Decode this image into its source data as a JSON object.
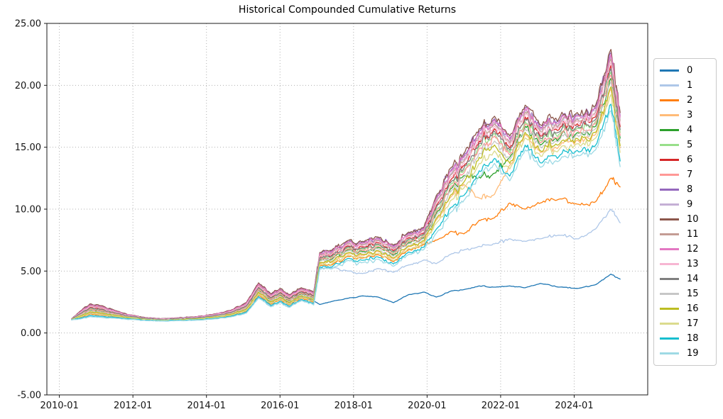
{
  "chart_data": {
    "type": "line",
    "title": "Historical Compounded Cumulative Returns",
    "xlabel": "",
    "ylabel": "",
    "ylim": [
      -5,
      25
    ],
    "y_ticks": [
      "25.00",
      "20.00",
      "15.00",
      "10.00",
      "5.00",
      "0.00",
      "-5.00"
    ],
    "x_ticks": [
      "2010-01",
      "2012-01",
      "2014-01",
      "2016-01",
      "2018-01",
      "2020-01",
      "2022-01",
      "2024-01"
    ],
    "grid": true,
    "grid_style": "dotted",
    "legend_position": "right-outside",
    "x": [
      "2010-05",
      "2010-08",
      "2010-11",
      "2011-03",
      "2011-08",
      "2012-01",
      "2012-06",
      "2012-10",
      "2013-03",
      "2013-09",
      "2014-03",
      "2014-09",
      "2015-02",
      "2015-06",
      "2015-10",
      "2016-01",
      "2016-04",
      "2016-08",
      "2016-12",
      "2017-02",
      "2017-06",
      "2017-11",
      "2018-04",
      "2018-09",
      "2019-02",
      "2019-07",
      "2019-12",
      "2020-04",
      "2020-09",
      "2021-01",
      "2021-06",
      "2021-11",
      "2022-04",
      "2022-09",
      "2023-02",
      "2023-08",
      "2024-02",
      "2024-08",
      "2025-01",
      "2025-04"
    ],
    "series": [
      {
        "name": "0",
        "color": "#1f77b4",
        "values": [
          1.09,
          1.35,
          1.64,
          1.55,
          1.36,
          1.2,
          1.06,
          1.02,
          1.06,
          1.11,
          1.24,
          1.47,
          1.87,
          3.21,
          2.44,
          2.82,
          2.39,
          2.94,
          2.59,
          2.3,
          2.55,
          2.8,
          3.0,
          2.9,
          2.45,
          3.1,
          3.3,
          2.9,
          3.4,
          3.5,
          3.8,
          3.7,
          3.8,
          3.65,
          4.0,
          3.7,
          3.6,
          3.9,
          4.75,
          4.35
        ]
      },
      {
        "name": "1",
        "color": "#aec7e8",
        "values": [
          1.06,
          1.17,
          1.36,
          1.3,
          1.21,
          1.11,
          1.0,
          0.97,
          1.0,
          1.03,
          1.14,
          1.33,
          1.64,
          2.88,
          2.16,
          2.52,
          2.11,
          2.66,
          2.31,
          5.24,
          5.26,
          5.0,
          4.8,
          5.2,
          4.9,
          5.5,
          5.9,
          5.6,
          6.4,
          6.7,
          7.0,
          7.2,
          7.6,
          7.4,
          7.6,
          7.9,
          7.6,
          8.4,
          10.0,
          8.9
        ]
      },
      {
        "name": "2",
        "color": "#ff7f0e",
        "values": [
          1.08,
          1.28,
          1.53,
          1.45,
          1.3,
          1.16,
          1.04,
          1.0,
          1.04,
          1.08,
          1.2,
          1.41,
          1.78,
          3.08,
          2.33,
          2.7,
          2.28,
          2.83,
          2.48,
          5.45,
          5.5,
          6.18,
          6.05,
          6.33,
          5.75,
          6.73,
          7.13,
          7.5,
          8.2,
          8.0,
          9.1,
          9.3,
          10.5,
          10.0,
          10.5,
          10.8,
          10.4,
          10.6,
          12.5,
          11.8
        ]
      },
      {
        "name": "3",
        "color": "#ffbb78",
        "values": [
          1.09,
          1.37,
          1.67,
          1.58,
          1.38,
          1.21,
          1.07,
          1.03,
          1.07,
          1.11,
          1.25,
          1.48,
          1.89,
          3.24,
          2.47,
          2.86,
          2.42,
          2.97,
          2.62,
          5.63,
          5.71,
          6.4,
          6.28,
          6.57,
          5.98,
          6.97,
          7.37,
          9.12,
          11.04,
          12.02,
          10.9,
          11.2,
          13.54,
          16.04,
          14.57,
          15.07,
          15.57,
          16.04,
          19.68,
          14.95
        ]
      },
      {
        "name": "4",
        "color": "#2ca02c",
        "values": [
          1.11,
          1.49,
          1.86,
          1.75,
          1.48,
          1.27,
          1.11,
          1.06,
          1.11,
          1.17,
          1.32,
          1.58,
          2.05,
          3.47,
          2.66,
          3.06,
          2.61,
          3.16,
          2.81,
          5.87,
          5.98,
          6.69,
          6.59,
          6.9,
          6.29,
          7.3,
          7.7,
          9.66,
          11.69,
          12.7,
          12.6,
          12.9,
          14.19,
          16.69,
          15.18,
          15.68,
          16.18,
          16.69,
          20.56,
          15.73
        ]
      },
      {
        "name": "5",
        "color": "#98df8a",
        "values": [
          1.12,
          1.56,
          1.97,
          1.85,
          1.54,
          1.3,
          1.14,
          1.08,
          1.14,
          1.2,
          1.36,
          1.63,
          2.14,
          3.6,
          2.77,
          3.18,
          2.72,
          3.27,
          2.92,
          6.01,
          6.14,
          6.86,
          6.77,
          7.09,
          6.47,
          7.49,
          7.89,
          9.98,
          12.07,
          13.1,
          15.1,
          16.1,
          14.57,
          17.07,
          15.54,
          16.04,
          16.54,
          17.07,
          21.08,
          16.19
        ]
      },
      {
        "name": "6",
        "color": "#d62728",
        "values": [
          1.13,
          1.63,
          2.08,
          1.95,
          1.6,
          1.34,
          1.16,
          1.1,
          1.16,
          1.23,
          1.4,
          1.69,
          2.23,
          3.73,
          2.88,
          3.3,
          2.83,
          3.38,
          3.03,
          6.15,
          6.3,
          7.03,
          6.95,
          7.28,
          6.65,
          7.68,
          8.08,
          10.3,
          12.45,
          13.5,
          15.5,
          16.5,
          14.95,
          17.45,
          15.9,
          16.4,
          16.9,
          17.45,
          21.6,
          16.65
        ]
      },
      {
        "name": "7",
        "color": "#ff9896",
        "values": [
          1.11,
          1.52,
          1.91,
          1.8,
          1.51,
          1.29,
          1.12,
          1.07,
          1.12,
          1.18,
          1.34,
          1.61,
          2.09,
          3.53,
          2.71,
          3.12,
          2.66,
          3.21,
          2.86,
          5.94,
          6.06,
          6.77,
          6.68,
          6.99,
          6.38,
          7.39,
          7.79,
          9.82,
          11.88,
          12.9,
          14.9,
          15.9,
          14.38,
          16.88,
          15.36,
          15.86,
          16.36,
          16.88,
          20.82,
          15.96
        ]
      },
      {
        "name": "8",
        "color": "#9467bd",
        "values": [
          1.15,
          1.77,
          2.3,
          2.15,
          1.72,
          1.41,
          1.21,
          1.14,
          1.21,
          1.29,
          1.48,
          1.8,
          2.41,
          3.99,
          3.1,
          3.54,
          3.05,
          3.6,
          3.25,
          6.43,
          6.62,
          7.37,
          7.31,
          7.66,
          7.01,
          8.06,
          8.46,
          10.94,
          13.21,
          14.3,
          16.3,
          17.3,
          15.71,
          18.21,
          16.62,
          17.12,
          17.62,
          18.21,
          22.64,
          17.57
        ]
      },
      {
        "name": "9",
        "color": "#c5b0d5",
        "values": [
          1.14,
          1.72,
          2.22,
          2.08,
          1.68,
          1.39,
          1.19,
          1.13,
          1.19,
          1.26,
          1.45,
          1.76,
          2.34,
          3.89,
          3.02,
          3.46,
          2.97,
          3.52,
          3.17,
          6.33,
          6.51,
          7.25,
          7.18,
          7.52,
          6.88,
          7.92,
          8.32,
          10.72,
          12.94,
          14.02,
          16.02,
          17.02,
          15.44,
          17.94,
          16.37,
          16.87,
          17.37,
          17.94,
          22.28,
          17.25
        ]
      },
      {
        "name": "10",
        "color": "#8c564b",
        "values": [
          1.15,
          1.8,
          2.35,
          2.2,
          1.75,
          1.43,
          1.22,
          1.15,
          1.22,
          1.3,
          1.5,
          1.83,
          2.45,
          4.05,
          3.15,
          3.6,
          3.1,
          3.65,
          3.3,
          6.5,
          6.7,
          7.45,
          7.4,
          7.75,
          7.1,
          8.15,
          8.55,
          11.1,
          13.4,
          14.5,
          16.5,
          17.5,
          15.9,
          18.4,
          16.8,
          17.3,
          17.8,
          18.4,
          22.9,
          17.8
        ]
      },
      {
        "name": "11",
        "color": "#c49c94",
        "values": [
          1.14,
          1.7,
          2.19,
          2.05,
          1.66,
          1.38,
          1.18,
          1.12,
          1.18,
          1.26,
          1.44,
          1.75,
          2.32,
          3.86,
          2.99,
          3.42,
          2.94,
          3.49,
          3.14,
          6.29,
          6.46,
          7.2,
          7.13,
          7.47,
          6.83,
          7.87,
          8.27,
          10.62,
          12.83,
          13.9,
          15.9,
          16.9,
          15.33,
          17.83,
          16.26,
          16.76,
          17.26,
          17.83,
          22.12,
          17.11
        ]
      },
      {
        "name": "12",
        "color": "#e377c2",
        "values": [
          1.14,
          1.74,
          2.26,
          2.12,
          1.7,
          1.4,
          1.2,
          1.13,
          1.2,
          1.28,
          1.47,
          1.79,
          2.38,
          3.95,
          3.06,
          3.5,
          3.01,
          3.56,
          3.21,
          6.39,
          6.57,
          7.31,
          7.26,
          7.6,
          6.96,
          8.0,
          8.4,
          10.84,
          13.1,
          14.18,
          16.18,
          17.18,
          15.6,
          18.1,
          16.51,
          17.01,
          17.51,
          18.1,
          22.48,
          17.43
        ]
      },
      {
        "name": "13",
        "color": "#f7b6d2",
        "values": [
          1.13,
          1.66,
          2.13,
          2.0,
          1.63,
          1.36,
          1.17,
          1.11,
          1.17,
          1.24,
          1.42,
          1.72,
          2.27,
          3.79,
          2.93,
          3.36,
          2.88,
          3.43,
          3.08,
          6.22,
          6.38,
          7.11,
          7.04,
          7.37,
          6.74,
          7.77,
          8.17,
          10.46,
          12.64,
          13.7,
          15.7,
          16.7,
          15.14,
          17.64,
          16.08,
          16.58,
          17.08,
          17.64,
          21.86,
          16.88
        ]
      },
      {
        "name": "14",
        "color": "#7f7f7f",
        "values": [
          1.12,
          1.59,
          2.02,
          1.9,
          1.57,
          1.32,
          1.15,
          1.09,
          1.15,
          1.21,
          1.38,
          1.66,
          2.18,
          3.66,
          2.82,
          3.24,
          2.77,
          3.32,
          2.97,
          6.08,
          6.22,
          6.94,
          6.86,
          7.18,
          6.56,
          7.58,
          7.98,
          10.14,
          12.26,
          13.3,
          15.3,
          16.3,
          14.76,
          17.26,
          15.72,
          16.22,
          16.72,
          17.26,
          21.34,
          16.42
        ]
      },
      {
        "name": "15",
        "color": "#c7c7c7",
        "values": [
          1.1,
          1.45,
          1.8,
          1.7,
          1.45,
          1.25,
          1.1,
          1.05,
          1.1,
          1.15,
          1.3,
          1.55,
          2.0,
          3.4,
          2.6,
          3.0,
          2.55,
          3.1,
          2.75,
          5.8,
          5.9,
          6.6,
          6.5,
          6.8,
          6.2,
          7.2,
          7.6,
          9.5,
          11.5,
          12.5,
          14.5,
          15.5,
          14.0,
          16.5,
          15.0,
          15.5,
          16.0,
          16.5,
          20.3,
          15.5
        ]
      },
      {
        "name": "16",
        "color": "#bcbd22",
        "values": [
          1.09,
          1.39,
          1.71,
          1.62,
          1.4,
          1.22,
          1.08,
          1.03,
          1.08,
          1.13,
          1.27,
          1.51,
          1.93,
          3.3,
          2.51,
          2.9,
          2.46,
          3.01,
          2.66,
          5.69,
          5.77,
          6.46,
          6.36,
          6.65,
          6.06,
          7.05,
          7.45,
          9.24,
          11.2,
          12.18,
          14.18,
          15.18,
          13.7,
          16.2,
          14.71,
          15.21,
          15.71,
          16.2,
          19.88,
          15.13
        ]
      },
      {
        "name": "17",
        "color": "#dbdb8d",
        "values": [
          1.08,
          1.31,
          1.58,
          1.5,
          1.33,
          1.18,
          1.05,
          1.01,
          1.05,
          1.09,
          1.22,
          1.44,
          1.82,
          3.14,
          2.38,
          2.76,
          2.33,
          2.88,
          2.53,
          5.52,
          5.58,
          6.26,
          6.14,
          6.42,
          5.84,
          6.82,
          7.22,
          8.86,
          10.74,
          11.7,
          13.7,
          14.7,
          13.24,
          15.74,
          14.28,
          14.78,
          15.28,
          15.74,
          19.26,
          14.58
        ]
      },
      {
        "name": "18",
        "color": "#17becf",
        "values": [
          1.07,
          1.21,
          1.42,
          1.35,
          1.24,
          1.12,
          1.02,
          0.98,
          1.02,
          1.05,
          1.16,
          1.35,
          1.69,
          2.95,
          2.22,
          2.58,
          2.17,
          2.72,
          2.37,
          5.31,
          5.34,
          6.01,
          5.87,
          6.14,
          5.57,
          6.54,
          6.94,
          8.38,
          10.17,
          11.1,
          13.1,
          14.1,
          12.67,
          15.17,
          13.74,
          14.24,
          14.74,
          15.17,
          18.48,
          13.89
        ]
      },
      {
        "name": "19",
        "color": "#9edae5",
        "values": [
          1.06,
          1.14,
          1.31,
          1.25,
          1.18,
          1.09,
          0.99,
          0.96,
          0.99,
          1.02,
          1.12,
          1.3,
          1.6,
          2.82,
          2.11,
          2.46,
          2.06,
          2.61,
          2.26,
          5.17,
          5.18,
          5.84,
          5.69,
          5.95,
          5.39,
          6.35,
          6.75,
          8.06,
          9.79,
          10.7,
          12.7,
          13.7,
          12.29,
          14.79,
          13.38,
          13.88,
          14.38,
          14.79,
          17.96,
          13.43
        ]
      }
    ]
  }
}
